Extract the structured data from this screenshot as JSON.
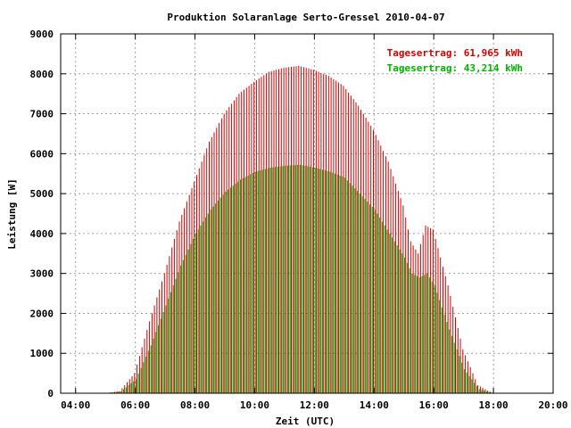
{
  "chart_data": {
    "type": "bar",
    "title": "Produktion Solaranlage Serto-Gressel 2010-04-07",
    "xlabel": "Zeit (UTC)",
    "ylabel": "Leistung [W]",
    "xlim": [
      3.5,
      20.0
    ],
    "ylim": [
      0,
      9000
    ],
    "x_ticks": [
      "04:00",
      "06:00",
      "08:00",
      "10:00",
      "12:00",
      "14:00",
      "16:00",
      "18:00",
      "20:00"
    ],
    "y_ticks": [
      "0",
      "1000",
      "2000",
      "3000",
      "4000",
      "5000",
      "6000",
      "7000",
      "8000",
      "9000"
    ],
    "grid": true,
    "legend_position": "top-right",
    "series": [
      {
        "label": "Tagesertrag: 61,965 kWh",
        "color": "#d00000",
        "x": [
          5.0,
          5.5,
          6.0,
          6.5,
          7.0,
          7.5,
          8.0,
          8.5,
          9.0,
          9.5,
          10.0,
          10.5,
          11.0,
          11.5,
          12.0,
          12.5,
          13.0,
          13.5,
          14.0,
          14.5,
          15.0,
          15.25,
          15.5,
          15.75,
          16.0,
          16.5,
          17.0,
          17.5,
          18.0
        ],
        "values": [
          0,
          50,
          500,
          1800,
          3000,
          4300,
          5300,
          6300,
          7000,
          7500,
          7800,
          8050,
          8150,
          8200,
          8100,
          7950,
          7700,
          7200,
          6600,
          5800,
          4700,
          3800,
          3500,
          4200,
          4100,
          2700,
          1100,
          200,
          0
        ]
      },
      {
        "label": "Tagesertrag: 43,214 kWh",
        "color": "#00b000",
        "x": [
          5.0,
          5.5,
          6.0,
          6.5,
          7.0,
          7.5,
          8.0,
          8.5,
          9.0,
          9.5,
          10.0,
          10.5,
          11.0,
          11.5,
          12.0,
          12.5,
          13.0,
          13.5,
          14.0,
          14.5,
          15.0,
          15.25,
          15.5,
          15.75,
          16.0,
          16.5,
          17.0,
          17.5,
          18.0
        ],
        "values": [
          0,
          50,
          350,
          1200,
          2200,
          3200,
          4000,
          4600,
          5050,
          5350,
          5550,
          5650,
          5700,
          5720,
          5650,
          5550,
          5400,
          5000,
          4600,
          4000,
          3400,
          3000,
          2900,
          3000,
          2700,
          1600,
          600,
          100,
          0
        ]
      }
    ]
  }
}
